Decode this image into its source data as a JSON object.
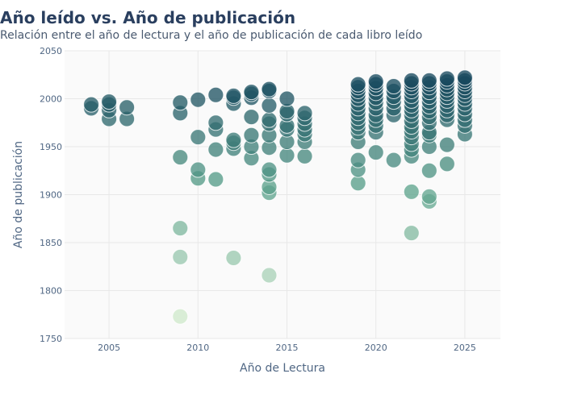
{
  "chart_data": {
    "type": "scatter",
    "title": "Año leído vs. Año de publicación",
    "subtitle": "Relación entre el año de lectura y el año de publicación de cada libro leído",
    "xlabel": "Año de Lectura",
    "ylabel": "Año de publicación",
    "xlim": [
      2002.5,
      2027
    ],
    "ylim": [
      1750,
      2050
    ],
    "xticks": [
      2005,
      2010,
      2015,
      2020,
      2025
    ],
    "yticks": [
      1750,
      1800,
      1850,
      1900,
      1950,
      2000,
      2050
    ],
    "grid": true,
    "legend": "none",
    "colorscale": {
      "low": "#cfe9cc",
      "mid": "#5aa18b",
      "high": "#17485e"
    },
    "points": [
      {
        "x": 2004,
        "y": 1990
      },
      {
        "x": 2004,
        "y": 1994
      },
      {
        "x": 2005,
        "y": 1979
      },
      {
        "x": 2005,
        "y": 1988
      },
      {
        "x": 2005,
        "y": 1994
      },
      {
        "x": 2005,
        "y": 1997
      },
      {
        "x": 2006,
        "y": 1979
      },
      {
        "x": 2006,
        "y": 1991
      },
      {
        "x": 2009,
        "y": 1773
      },
      {
        "x": 2009,
        "y": 1835
      },
      {
        "x": 2009,
        "y": 1865
      },
      {
        "x": 2009,
        "y": 1939
      },
      {
        "x": 2009,
        "y": 1985
      },
      {
        "x": 2009,
        "y": 1996
      },
      {
        "x": 2010,
        "y": 1917
      },
      {
        "x": 2010,
        "y": 1926
      },
      {
        "x": 2010,
        "y": 1960
      },
      {
        "x": 2010,
        "y": 1999
      },
      {
        "x": 2011,
        "y": 1916
      },
      {
        "x": 2011,
        "y": 1947
      },
      {
        "x": 2011,
        "y": 1968
      },
      {
        "x": 2011,
        "y": 1975
      },
      {
        "x": 2011,
        "y": 2004
      },
      {
        "x": 2012,
        "y": 1834
      },
      {
        "x": 2012,
        "y": 1948
      },
      {
        "x": 2012,
        "y": 1954
      },
      {
        "x": 2012,
        "y": 1957
      },
      {
        "x": 2012,
        "y": 1995
      },
      {
        "x": 2012,
        "y": 2001
      },
      {
        "x": 2012,
        "y": 2003
      },
      {
        "x": 2013,
        "y": 1938
      },
      {
        "x": 2013,
        "y": 1950
      },
      {
        "x": 2013,
        "y": 1962
      },
      {
        "x": 2013,
        "y": 1981
      },
      {
        "x": 2013,
        "y": 2001
      },
      {
        "x": 2013,
        "y": 2005
      },
      {
        "x": 2013,
        "y": 2007
      },
      {
        "x": 2014,
        "y": 1816
      },
      {
        "x": 2014,
        "y": 1902
      },
      {
        "x": 2014,
        "y": 1908
      },
      {
        "x": 2014,
        "y": 1921
      },
      {
        "x": 2014,
        "y": 1926
      },
      {
        "x": 2014,
        "y": 1949
      },
      {
        "x": 2014,
        "y": 1962
      },
      {
        "x": 2014,
        "y": 1974
      },
      {
        "x": 2014,
        "y": 1978
      },
      {
        "x": 2014,
        "y": 1993
      },
      {
        "x": 2014,
        "y": 2008
      },
      {
        "x": 2014,
        "y": 2010
      },
      {
        "x": 2015,
        "y": 1941
      },
      {
        "x": 2015,
        "y": 1955
      },
      {
        "x": 2015,
        "y": 1968
      },
      {
        "x": 2015,
        "y": 1972
      },
      {
        "x": 2015,
        "y": 1984
      },
      {
        "x": 2015,
        "y": 1987
      },
      {
        "x": 2015,
        "y": 2000
      },
      {
        "x": 2016,
        "y": 1940
      },
      {
        "x": 2016,
        "y": 1955
      },
      {
        "x": 2016,
        "y": 1963
      },
      {
        "x": 2016,
        "y": 1968
      },
      {
        "x": 2016,
        "y": 1974
      },
      {
        "x": 2016,
        "y": 1980
      },
      {
        "x": 2016,
        "y": 1985
      },
      {
        "x": 2019,
        "y": 1912
      },
      {
        "x": 2019,
        "y": 1926
      },
      {
        "x": 2019,
        "y": 1936
      },
      {
        "x": 2019,
        "y": 1955
      },
      {
        "x": 2019,
        "y": 1965
      },
      {
        "x": 2019,
        "y": 1970
      },
      {
        "x": 2019,
        "y": 1975
      },
      {
        "x": 2019,
        "y": 1980
      },
      {
        "x": 2019,
        "y": 1985
      },
      {
        "x": 2019,
        "y": 1990
      },
      {
        "x": 2019,
        "y": 1995
      },
      {
        "x": 2019,
        "y": 2000
      },
      {
        "x": 2019,
        "y": 2004
      },
      {
        "x": 2019,
        "y": 2008
      },
      {
        "x": 2019,
        "y": 2012
      },
      {
        "x": 2019,
        "y": 2015
      },
      {
        "x": 2020,
        "y": 1944
      },
      {
        "x": 2020,
        "y": 1965
      },
      {
        "x": 2020,
        "y": 1972
      },
      {
        "x": 2020,
        "y": 1978
      },
      {
        "x": 2020,
        "y": 1983
      },
      {
        "x": 2020,
        "y": 1990
      },
      {
        "x": 2020,
        "y": 1996
      },
      {
        "x": 2020,
        "y": 2001
      },
      {
        "x": 2020,
        "y": 2006
      },
      {
        "x": 2020,
        "y": 2011
      },
      {
        "x": 2020,
        "y": 2015
      },
      {
        "x": 2020,
        "y": 2018
      },
      {
        "x": 2021,
        "y": 1936
      },
      {
        "x": 2021,
        "y": 1983
      },
      {
        "x": 2021,
        "y": 1990
      },
      {
        "x": 2021,
        "y": 1997
      },
      {
        "x": 2021,
        "y": 2002
      },
      {
        "x": 2021,
        "y": 2008
      },
      {
        "x": 2021,
        "y": 2013
      },
      {
        "x": 2022,
        "y": 1860
      },
      {
        "x": 2022,
        "y": 1903
      },
      {
        "x": 2022,
        "y": 1940
      },
      {
        "x": 2022,
        "y": 1947
      },
      {
        "x": 2022,
        "y": 1953
      },
      {
        "x": 2022,
        "y": 1960
      },
      {
        "x": 2022,
        "y": 1966
      },
      {
        "x": 2022,
        "y": 1971
      },
      {
        "x": 2022,
        "y": 1977
      },
      {
        "x": 2022,
        "y": 1983
      },
      {
        "x": 2022,
        "y": 1988
      },
      {
        "x": 2022,
        "y": 1993
      },
      {
        "x": 2022,
        "y": 1998
      },
      {
        "x": 2022,
        "y": 2003
      },
      {
        "x": 2022,
        "y": 2008
      },
      {
        "x": 2022,
        "y": 2012
      },
      {
        "x": 2022,
        "y": 2016
      },
      {
        "x": 2022,
        "y": 2019
      },
      {
        "x": 2023,
        "y": 1893
      },
      {
        "x": 2023,
        "y": 1898
      },
      {
        "x": 2023,
        "y": 1925
      },
      {
        "x": 2023,
        "y": 1950
      },
      {
        "x": 2023,
        "y": 1962
      },
      {
        "x": 2023,
        "y": 1965
      },
      {
        "x": 2023,
        "y": 1975
      },
      {
        "x": 2023,
        "y": 1981
      },
      {
        "x": 2023,
        "y": 1987
      },
      {
        "x": 2023,
        "y": 1992
      },
      {
        "x": 2023,
        "y": 1997
      },
      {
        "x": 2023,
        "y": 2002
      },
      {
        "x": 2023,
        "y": 2007
      },
      {
        "x": 2023,
        "y": 2012
      },
      {
        "x": 2023,
        "y": 2016
      },
      {
        "x": 2023,
        "y": 2019
      },
      {
        "x": 2024,
        "y": 1932
      },
      {
        "x": 2024,
        "y": 1952
      },
      {
        "x": 2024,
        "y": 1978
      },
      {
        "x": 2024,
        "y": 1983
      },
      {
        "x": 2024,
        "y": 1988
      },
      {
        "x": 2024,
        "y": 1993
      },
      {
        "x": 2024,
        "y": 1998
      },
      {
        "x": 2024,
        "y": 2002
      },
      {
        "x": 2024,
        "y": 2006
      },
      {
        "x": 2024,
        "y": 2010
      },
      {
        "x": 2024,
        "y": 2014
      },
      {
        "x": 2024,
        "y": 2018
      },
      {
        "x": 2024,
        "y": 2021
      },
      {
        "x": 2025,
        "y": 1963
      },
      {
        "x": 2025,
        "y": 1972
      },
      {
        "x": 2025,
        "y": 1978
      },
      {
        "x": 2025,
        "y": 1984
      },
      {
        "x": 2025,
        "y": 1990
      },
      {
        "x": 2025,
        "y": 1995
      },
      {
        "x": 2025,
        "y": 2000
      },
      {
        "x": 2025,
        "y": 2004
      },
      {
        "x": 2025,
        "y": 2008
      },
      {
        "x": 2025,
        "y": 2012
      },
      {
        "x": 2025,
        "y": 2016
      },
      {
        "x": 2025,
        "y": 2019
      },
      {
        "x": 2025,
        "y": 2022
      }
    ]
  }
}
